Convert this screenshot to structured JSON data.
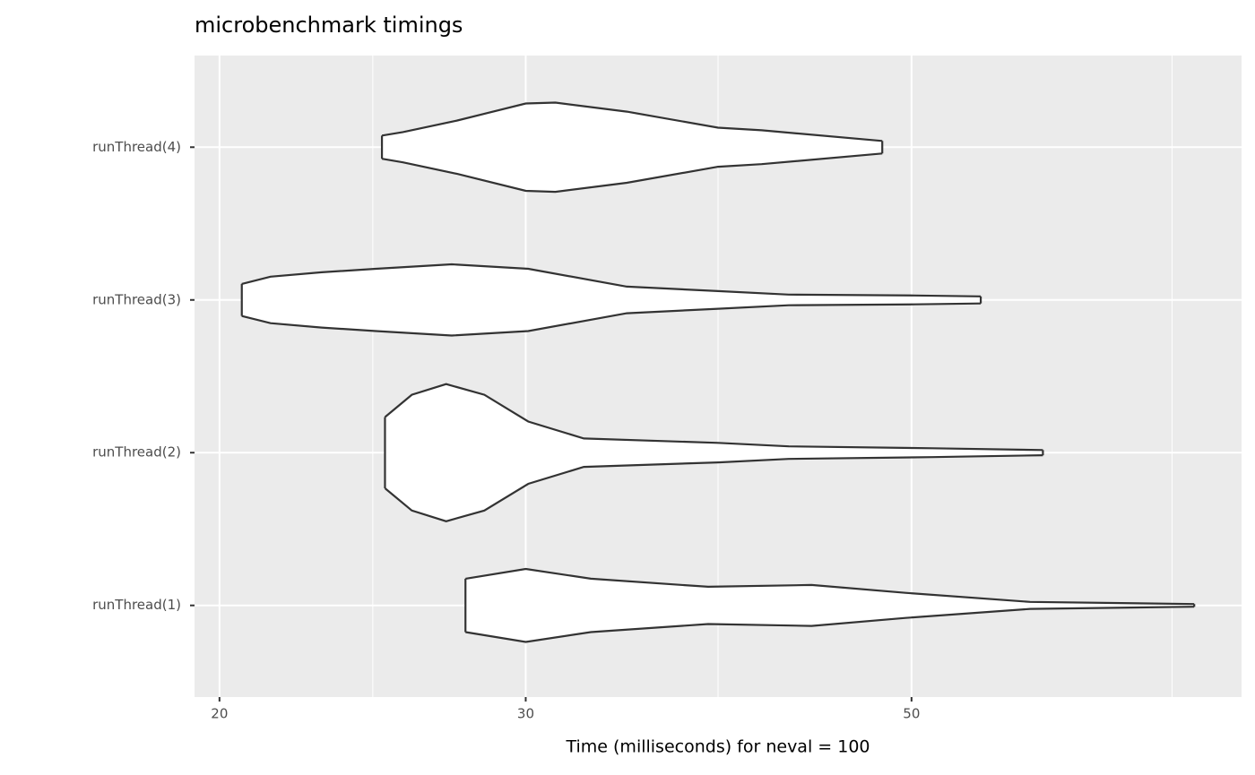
{
  "chart_data": {
    "type": "violin",
    "title": "microbenchmark timings",
    "x_label": "Time (milliseconds) for neval = 100",
    "x_log": true,
    "xlim": [
      19.35,
      77.4
    ],
    "xticks": [
      20,
      30,
      50
    ],
    "x_minor_grid": [
      24.5,
      38.7,
      70.6
    ],
    "grid": true,
    "fill": "#ffffff",
    "stroke": "#333333",
    "categories": [
      "runThread(1)",
      "runThread(2)",
      "runThread(3)",
      "runThread(4)"
    ],
    "series": [
      {
        "x": [
          27.7,
          30.0,
          32.7,
          38.2,
          43.8,
          49.6,
          58.5,
          72.7
        ],
        "width": [
          0.175,
          0.239,
          0.175,
          0.122,
          0.134,
          0.082,
          0.023,
          0.009
        ]
      },
      {
        "x": [
          24.9,
          25.8,
          27.0,
          28.4,
          30.1,
          32.4,
          38.7,
          42.5,
          51.4,
          59.5
        ],
        "width": [
          0.233,
          0.379,
          0.449,
          0.379,
          0.204,
          0.093,
          0.064,
          0.041,
          0.029,
          0.017
        ]
      },
      {
        "x": [
          20.6,
          21.4,
          22.9,
          24.6,
          27.2,
          30.1,
          34.3,
          38.7,
          42.5,
          50.2,
          54.8
        ],
        "width": [
          0.105,
          0.152,
          0.181,
          0.204,
          0.233,
          0.204,
          0.087,
          0.058,
          0.035,
          0.029,
          0.023
        ]
      },
      {
        "x": [
          24.8,
          25.5,
          27.4,
          30.0,
          31.2,
          34.3,
          38.7,
          41.0,
          48.1
        ],
        "width": [
          0.076,
          0.099,
          0.175,
          0.286,
          0.292,
          0.233,
          0.128,
          0.111,
          0.041
        ]
      }
    ]
  }
}
